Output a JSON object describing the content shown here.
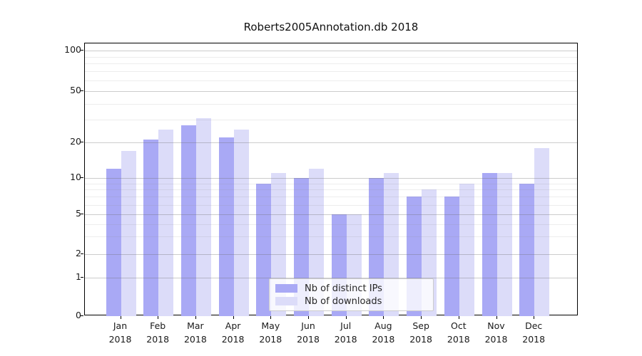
{
  "chart_data": {
    "type": "bar",
    "title": "Roberts2005Annotation.db 2018",
    "categories": [
      {
        "month": "Jan",
        "year": "2018"
      },
      {
        "month": "Feb",
        "year": "2018"
      },
      {
        "month": "Mar",
        "year": "2018"
      },
      {
        "month": "Apr",
        "year": "2018"
      },
      {
        "month": "May",
        "year": "2018"
      },
      {
        "month": "Jun",
        "year": "2018"
      },
      {
        "month": "Jul",
        "year": "2018"
      },
      {
        "month": "Aug",
        "year": "2018"
      },
      {
        "month": "Sep",
        "year": "2018"
      },
      {
        "month": "Oct",
        "year": "2018"
      },
      {
        "month": "Nov",
        "year": "2018"
      },
      {
        "month": "Dec",
        "year": "2018"
      }
    ],
    "series": [
      {
        "name": "Nb of distinct IPs",
        "color": "#a9a9f5",
        "values": [
          12,
          21,
          27,
          22,
          9,
          10,
          5,
          10,
          7,
          7,
          11,
          9
        ]
      },
      {
        "name": "Nb of downloads",
        "color": "#dcdcf9",
        "values": [
          17,
          25,
          31,
          25,
          11,
          12,
          5,
          11,
          8,
          9,
          11,
          18
        ]
      }
    ],
    "y_axis": {
      "scale": "log-like",
      "ticks": [
        0,
        1,
        2,
        5,
        10,
        20,
        50,
        100
      ],
      "minor_ticks": [
        3,
        4,
        6,
        7,
        8,
        9,
        30,
        40,
        60,
        70,
        80,
        90
      ],
      "ylim": [
        0,
        100
      ]
    },
    "x_axis": {
      "tick_label_format": "month over year"
    },
    "legend": {
      "position": "lower center",
      "entries": [
        "Nb of distinct IPs",
        "Nb of downloads"
      ]
    },
    "grid": true,
    "background": "#ffffff"
  }
}
